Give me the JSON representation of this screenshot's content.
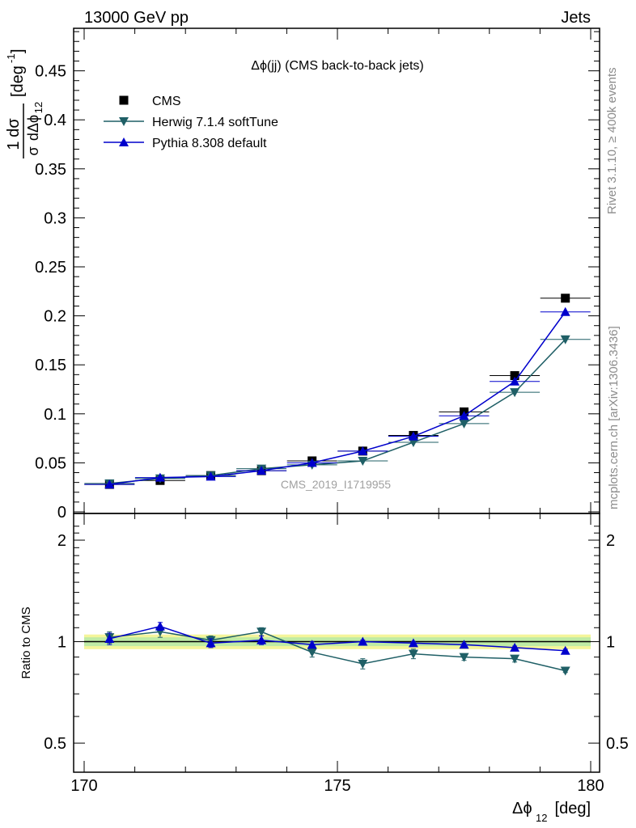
{
  "header": {
    "left": "13000 GeV pp",
    "right": "Jets"
  },
  "side_labels": {
    "rivet": "Rivet 3.1.10, ≥ 400k events",
    "mcplots": "mcplots.cern.ch [arXiv:1306.3436]"
  },
  "chart_data": [
    {
      "type": "line",
      "title": "Δϕ(jj) (CMS back-to-back jets)",
      "watermark": "CMS_2019_I1719955",
      "ylabel_parts": [
        "1",
        "dσ",
        "σ",
        "dΔϕ",
        "12",
        "[deg",
        "-1",
        "]"
      ],
      "xlim": [
        170,
        180
      ],
      "ylim": [
        0,
        0.5
      ],
      "y_ticks": [
        0,
        0.05,
        0.1,
        0.15,
        0.2,
        0.25,
        0.3,
        0.35,
        0.4,
        0.45
      ],
      "y_tick_labels": [
        "0",
        "0.05",
        "0.1",
        "0.15",
        "0.2",
        "0.25",
        "0.3",
        "0.35",
        "0.4",
        "0.45"
      ],
      "x": [
        170.5,
        171.5,
        172.5,
        173.5,
        174.5,
        175.5,
        176.5,
        177.5,
        178.5,
        179.5
      ],
      "legend_placement": "top-left",
      "series": [
        {
          "name": "CMS",
          "marker": "square",
          "color": "#000000",
          "values": [
            0.028,
            0.032,
            0.037,
            0.042,
            0.052,
            0.062,
            0.078,
            0.102,
            0.139,
            0.218
          ]
        },
        {
          "name": "Herwig 7.1.4 softTune",
          "marker": "triangle-down",
          "color": "#1f5f66",
          "values": [
            0.029,
            0.034,
            0.037,
            0.044,
            0.048,
            0.052,
            0.071,
            0.09,
            0.122,
            0.176
          ]
        },
        {
          "name": "Pythia 8.308 default",
          "marker": "triangle-up",
          "color": "#0000cc",
          "values": [
            0.028,
            0.035,
            0.036,
            0.042,
            0.05,
            0.062,
            0.077,
            0.098,
            0.133,
            0.204
          ]
        }
      ]
    },
    {
      "type": "line",
      "ylabel": "Ratio to CMS",
      "xlabel_parts": [
        "Δϕ",
        "12",
        " [deg]"
      ],
      "xlim": [
        170,
        180
      ],
      "ylim": [
        0.41,
        2.4
      ],
      "y_scale": "log",
      "y_ticks": [
        0.5,
        1,
        2
      ],
      "y_tick_labels": [
        "0.5",
        "1",
        "2"
      ],
      "x_ticks": [
        170,
        175,
        180
      ],
      "x_tick_labels": [
        "170",
        "175",
        "180"
      ],
      "x": [
        170.5,
        171.5,
        172.5,
        173.5,
        174.5,
        175.5,
        176.5,
        177.5,
        178.5,
        179.5
      ],
      "band_inner": [
        0.97,
        1.03
      ],
      "band_outer": [
        0.95,
        1.05
      ],
      "series": [
        {
          "name": "Herwig 7.1.4 softTune",
          "marker": "triangle-down",
          "color": "#1f5f66",
          "values": [
            1.03,
            1.07,
            1.01,
            1.07,
            0.93,
            0.86,
            0.92,
            0.9,
            0.89,
            0.82
          ],
          "errors": [
            0.04,
            0.04,
            0.03,
            0.03,
            0.03,
            0.03,
            0.03,
            0.02,
            0.02,
            0.01
          ]
        },
        {
          "name": "Pythia 8.308 default",
          "marker": "triangle-up",
          "color": "#0000cc",
          "values": [
            1.02,
            1.11,
            0.99,
            1.01,
            0.98,
            1.0,
            0.99,
            0.98,
            0.96,
            0.94
          ],
          "errors": [
            0.04,
            0.03,
            0.03,
            0.03,
            0.02,
            0.01,
            0.01,
            0.01,
            0.01,
            0.01
          ]
        }
      ]
    }
  ]
}
